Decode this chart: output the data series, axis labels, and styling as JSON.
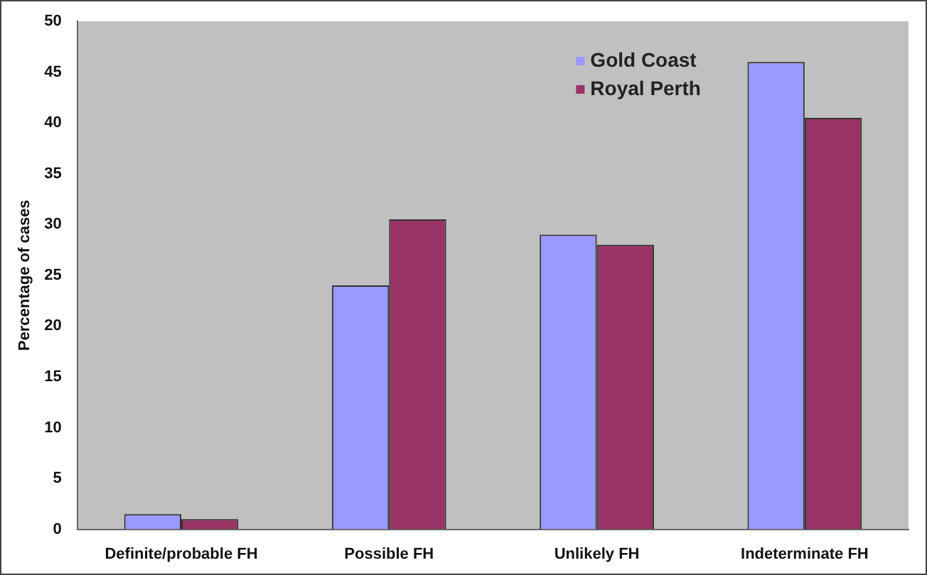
{
  "chart_data": {
    "type": "bar",
    "ylabel": "Percentage of cases",
    "categories": [
      "Definite/probable FH",
      "Possible FH",
      "Unlikely FH",
      "Indeterminate FH"
    ],
    "series": [
      {
        "name": "Gold Coast",
        "color": "#9999ff",
        "values": [
          1.5,
          24,
          29,
          46
        ]
      },
      {
        "name": "Royal Perth",
        "color": "#993366",
        "values": [
          1,
          30.5,
          28,
          40.5
        ]
      }
    ],
    "ylim": [
      0,
      50
    ],
    "yticks": [
      0,
      5,
      10,
      15,
      20,
      25,
      30,
      35,
      40,
      45,
      50
    ],
    "grid": false,
    "legend": "top right"
  }
}
